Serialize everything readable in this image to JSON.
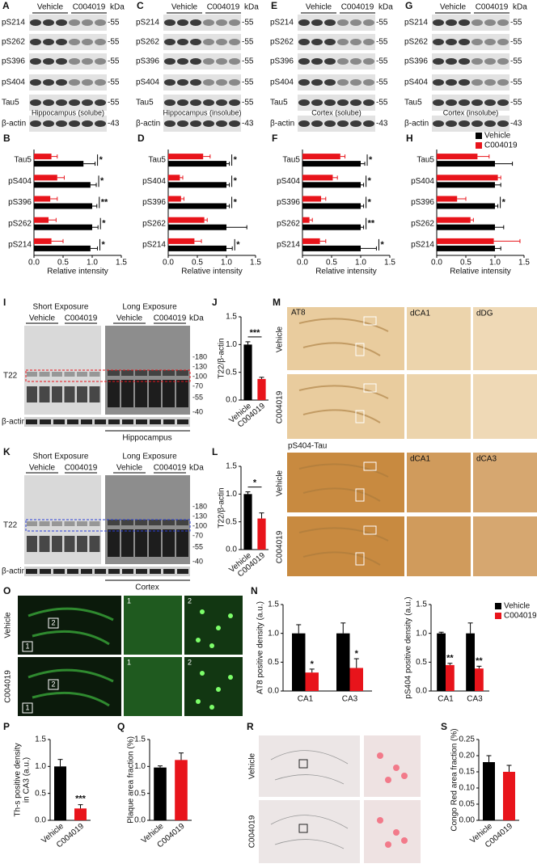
{
  "blots": [
    {
      "panel": "A",
      "groups": [
        "Vehicle",
        "C004019"
      ],
      "unit": "kDa",
      "rows": [
        "pS214",
        "pS262",
        "pS396",
        "pS404",
        "Tau5",
        "β-actin"
      ],
      "sizes": [
        "-55",
        "-55",
        "-55",
        "-55",
        "-55",
        "-43"
      ],
      "caption": "Hippocampus (solube)"
    },
    {
      "panel": "C",
      "groups": [
        "Vehicle",
        "C004019"
      ],
      "unit": "kDa",
      "rows": [
        "pS214",
        "pS262",
        "pS396",
        "pS404",
        "Tau5",
        "β-actin"
      ],
      "sizes": [
        "-55",
        "-55",
        "-55",
        "-55",
        "-55",
        "-43"
      ],
      "caption": "Hippocampus (insolube)"
    },
    {
      "panel": "E",
      "groups": [
        "Vehicle",
        "C004019"
      ],
      "unit": "kDa",
      "rows": [
        "pS214",
        "pS262",
        "pS396",
        "pS404",
        "Tau5",
        "β-actin"
      ],
      "sizes": [
        "-55",
        "-55",
        "-55",
        "-55",
        "-55",
        "-43"
      ],
      "caption": "Cortex (solube)"
    },
    {
      "panel": "G",
      "groups": [
        "Vehicle",
        "C004019"
      ],
      "unit": "kDa",
      "rows": [
        "pS214",
        "pS262",
        "pS396",
        "pS404",
        "Tau5",
        "β-actin"
      ],
      "sizes": [
        "-55",
        "-55",
        "-55",
        "-55",
        "-55",
        "-43"
      ],
      "caption": "Cortex (insolube)"
    }
  ],
  "gels": [
    {
      "panel": "I",
      "exposures": [
        "Short Exposure",
        "Long Exposure"
      ],
      "groups": [
        "Vehicle",
        "C004019"
      ],
      "unit": "kDa",
      "band": "T22",
      "loading": "β-actin",
      "markers": [
        "-180",
        "-130",
        "-100",
        "-70",
        "-55",
        "-40"
      ],
      "tissue": "Hippocampus"
    },
    {
      "panel": "K",
      "exposures": [
        "Short Exposure",
        "Long Exposure"
      ],
      "groups": [
        "Vehicle",
        "C004019"
      ],
      "unit": "kDa",
      "band": "T22",
      "loading": "β-actin",
      "markers": [
        "-180",
        "-130",
        "-100",
        "-70",
        "-55",
        "-40"
      ],
      "tissue": "Cortex"
    }
  ],
  "images": {
    "M": {
      "panel": "M",
      "groups": [
        "Vehicle",
        "C004019"
      ],
      "stains": [
        {
          "name": "AT8",
          "regions": [
            "dCA1",
            "dDG"
          ]
        },
        {
          "name": "pS404-Tau",
          "regions": [
            "dCA1",
            "dCA3"
          ]
        }
      ]
    },
    "O": {
      "panel": "O",
      "groups": [
        "Vehicle",
        "C004019"
      ],
      "insets": [
        "1",
        "2"
      ]
    },
    "R": {
      "panel": "R",
      "groups": [
        "Vehicle",
        "C004019"
      ]
    }
  },
  "chart_data": [
    {
      "panel": "B",
      "type": "hbar",
      "categories": [
        "Tau5",
        "pS404",
        "pS396",
        "pS262",
        "pS214"
      ],
      "series": [
        {
          "name": "Vehicle",
          "color": "#000000",
          "values": [
            0.85,
            0.97,
            1.0,
            1.0,
            0.97
          ],
          "errors": [
            0.2,
            0.1,
            0.08,
            0.1,
            0.12
          ]
        },
        {
          "name": "C004019",
          "color": "#e8141b",
          "values": [
            0.3,
            0.4,
            0.28,
            0.25,
            0.3
          ],
          "errors": [
            0.1,
            0.12,
            0.12,
            0.13,
            0.2
          ]
        }
      ],
      "annotations": [
        "*",
        "*",
        "**",
        "*",
        "*"
      ],
      "xlim": [
        0,
        1.5
      ],
      "xticks": [
        {
          "value": 0,
          "label": "0.0"
        },
        0.5,
        {
          "value": 1,
          "label": "1.0"
        },
        1.5
      ],
      "xlabel": "Relative intensity",
      "legend": false
    },
    {
      "panel": "D",
      "type": "hbar",
      "categories": [
        "Tau5",
        "pS404",
        "pS396",
        "pS262",
        "pS214"
      ],
      "series": [
        {
          "name": "Vehicle",
          "color": "#000000",
          "values": [
            1.0,
            1.0,
            1.0,
            1.0,
            1.0
          ],
          "errors": [
            0.05,
            0.05,
            0.05,
            0.35,
            0.1
          ]
        },
        {
          "name": "C004019",
          "color": "#e8141b",
          "values": [
            0.6,
            0.2,
            0.22,
            0.62,
            0.45
          ],
          "errors": [
            0.12,
            0.05,
            0.05,
            0.05,
            0.12
          ]
        }
      ],
      "annotations": [
        "*",
        "*",
        "*",
        null,
        "*"
      ],
      "xlim": [
        0,
        1.5
      ],
      "xticks": [
        {
          "value": 0,
          "label": "0.0"
        },
        0.5,
        {
          "value": 1,
          "label": "1.0"
        },
        1.5
      ],
      "xlabel": "Relative intensity",
      "legend": false
    },
    {
      "panel": "F",
      "type": "hbar",
      "categories": [
        "Tau5",
        "pS404",
        "pS396",
        "pS262",
        "pS214"
      ],
      "series": [
        {
          "name": "Vehicle",
          "color": "#000000",
          "values": [
            1.0,
            1.0,
            1.0,
            1.0,
            1.0
          ],
          "errors": [
            0.07,
            0.05,
            0.05,
            0.05,
            0.27
          ]
        },
        {
          "name": "C004019",
          "color": "#e8141b",
          "values": [
            0.65,
            0.52,
            0.32,
            0.12,
            0.3
          ],
          "errors": [
            0.08,
            0.08,
            0.08,
            0.05,
            0.1
          ]
        }
      ],
      "annotations": [
        "*",
        "*",
        "*",
        "**",
        "*"
      ],
      "xlim": [
        0,
        1.5
      ],
      "xticks": [
        {
          "value": 0,
          "label": "0.0"
        },
        0.5,
        {
          "value": 1,
          "label": "1.0"
        },
        1.5
      ],
      "xlabel": "Relative intensity",
      "legend": false
    },
    {
      "panel": "H",
      "type": "hbar",
      "categories": [
        "Tau5",
        "pS404",
        "pS396",
        "pS262",
        "pS214"
      ],
      "series": [
        {
          "name": "Vehicle",
          "color": "#000000",
          "values": [
            1.0,
            1.0,
            1.0,
            1.0,
            1.0
          ],
          "errors": [
            0.3,
            0.1,
            0.05,
            0.15,
            0.1
          ]
        },
        {
          "name": "C004019",
          "color": "#e8141b",
          "values": [
            0.7,
            1.05,
            0.35,
            0.58,
            0.98
          ],
          "errors": [
            0.2,
            0.05,
            0.15,
            0.05,
            0.45
          ]
        }
      ],
      "annotations": [
        null,
        null,
        "*",
        null,
        null
      ],
      "xlim": [
        0,
        1.5
      ],
      "xticks": [
        {
          "value": 0,
          "label": "0.0"
        },
        0.5,
        {
          "value": 1,
          "label": "1.0"
        },
        1.5
      ],
      "xlabel": "Relative intensity",
      "legend": "upper right"
    },
    {
      "panel": "J",
      "type": "bar",
      "categories": [
        "Vehicle",
        "C004019"
      ],
      "values": [
        1.0,
        0.38
      ],
      "errors": [
        0.05,
        0.03
      ],
      "colors": [
        "#000000",
        "#e8141b"
      ],
      "ylim": [
        0,
        1.5
      ],
      "yticks": [
        {
          "value": 0,
          "label": "0.0"
        },
        0.5,
        {
          "value": 1,
          "label": "1.0"
        },
        1.5
      ],
      "ylabel": "T22/β-actin",
      "bracket": "***"
    },
    {
      "panel": "L",
      "type": "bar",
      "categories": [
        "Vehicle",
        "C004019"
      ],
      "values": [
        1.0,
        0.56
      ],
      "errors": [
        0.04,
        0.1
      ],
      "colors": [
        "#000000",
        "#e8141b"
      ],
      "ylim": [
        0,
        1.5
      ],
      "yticks": [
        {
          "value": 0,
          "label": "0.0"
        },
        0.5,
        {
          "value": 1,
          "label": "1.0"
        },
        1.5
      ],
      "ylabel": "T22/β-actin",
      "bracket": "*"
    },
    {
      "panel": "N",
      "type": "grouped_bar",
      "categories": [
        "CA1",
        "CA3"
      ],
      "series": [
        {
          "name": "Vehicle",
          "color": "#000000",
          "values": [
            1.0,
            1.0
          ],
          "errors": [
            0.15,
            0.18
          ]
        },
        {
          "name": "C004019",
          "color": "#e8141b",
          "values": [
            0.32,
            0.4
          ],
          "errors": [
            0.06,
            0.16
          ]
        }
      ],
      "annotations": [
        "*",
        "*"
      ],
      "ylim": [
        0,
        1.5
      ],
      "yticks": [
        {
          "value": 0,
          "label": "0.0"
        },
        0.5,
        {
          "value": 1,
          "label": "1.0"
        },
        1.5
      ],
      "ylabel": "AT8 positive density (a.u.)",
      "legend": false
    },
    {
      "type": "grouped_bar",
      "categories": [
        "CA1",
        "CA3"
      ],
      "series": [
        {
          "name": "Vehicle",
          "color": "#000000",
          "values": [
            1.0,
            1.0
          ],
          "errors": [
            0.02,
            0.18
          ]
        },
        {
          "name": "C004019",
          "color": "#e8141b",
          "values": [
            0.45,
            0.39
          ],
          "errors": [
            0.03,
            0.04
          ]
        }
      ],
      "annotations": [
        "**",
        "**"
      ],
      "ylim": [
        0,
        1.5
      ],
      "yticks": [
        {
          "value": 0,
          "label": "0.0"
        },
        0.5,
        {
          "value": 1,
          "label": "1.0"
        },
        1.5
      ],
      "ylabel": "pS404 positive density (a.u.)",
      "legend": "upper right"
    },
    {
      "panel": "P",
      "type": "bar",
      "categories": [
        "Vehicle",
        "C004019"
      ],
      "values": [
        1.0,
        0.22
      ],
      "errors": [
        0.13,
        0.07
      ],
      "colors": [
        "#000000",
        "#e8141b"
      ],
      "ylim": [
        0,
        1.5
      ],
      "yticks": [
        {
          "value": 0,
          "label": "0.0"
        },
        0.5,
        {
          "value": 1,
          "label": "1.0"
        },
        1.5
      ],
      "ylabel": [
        "Th-s positive density",
        "in CA3 (a.u.)"
      ],
      "annotations": [
        null,
        "***"
      ]
    },
    {
      "panel": "Q",
      "type": "bar",
      "categories": [
        "Vehicle",
        "C004019"
      ],
      "values": [
        0.98,
        1.12
      ],
      "errors": [
        0.03,
        0.13
      ],
      "colors": [
        "#000000",
        "#e8141b"
      ],
      "ylim": [
        0,
        1.5
      ],
      "yticks": [
        {
          "value": 0,
          "label": "0.0"
        },
        0.5,
        {
          "value": 1,
          "label": "1.0"
        },
        1.5
      ],
      "ylabel": "Plaque area fraction (%)"
    },
    {
      "panel": "S",
      "type": "bar",
      "categories": [
        "Vehicle",
        "C004019"
      ],
      "values": [
        0.18,
        0.15
      ],
      "errors": [
        0.02,
        0.02
      ],
      "colors": [
        "#000000",
        "#e8141b"
      ],
      "ylim": [
        0,
        0.25
      ],
      "yticks": [
        {
          "value": 0,
          "label": "0.00"
        },
        0.05,
        {
          "value": 0.1,
          "label": "0.10"
        },
        0.15,
        {
          "value": 0.2,
          "label": "0.20"
        },
        0.25
      ],
      "ylabel": "Congo Red area fraction (%)"
    }
  ]
}
